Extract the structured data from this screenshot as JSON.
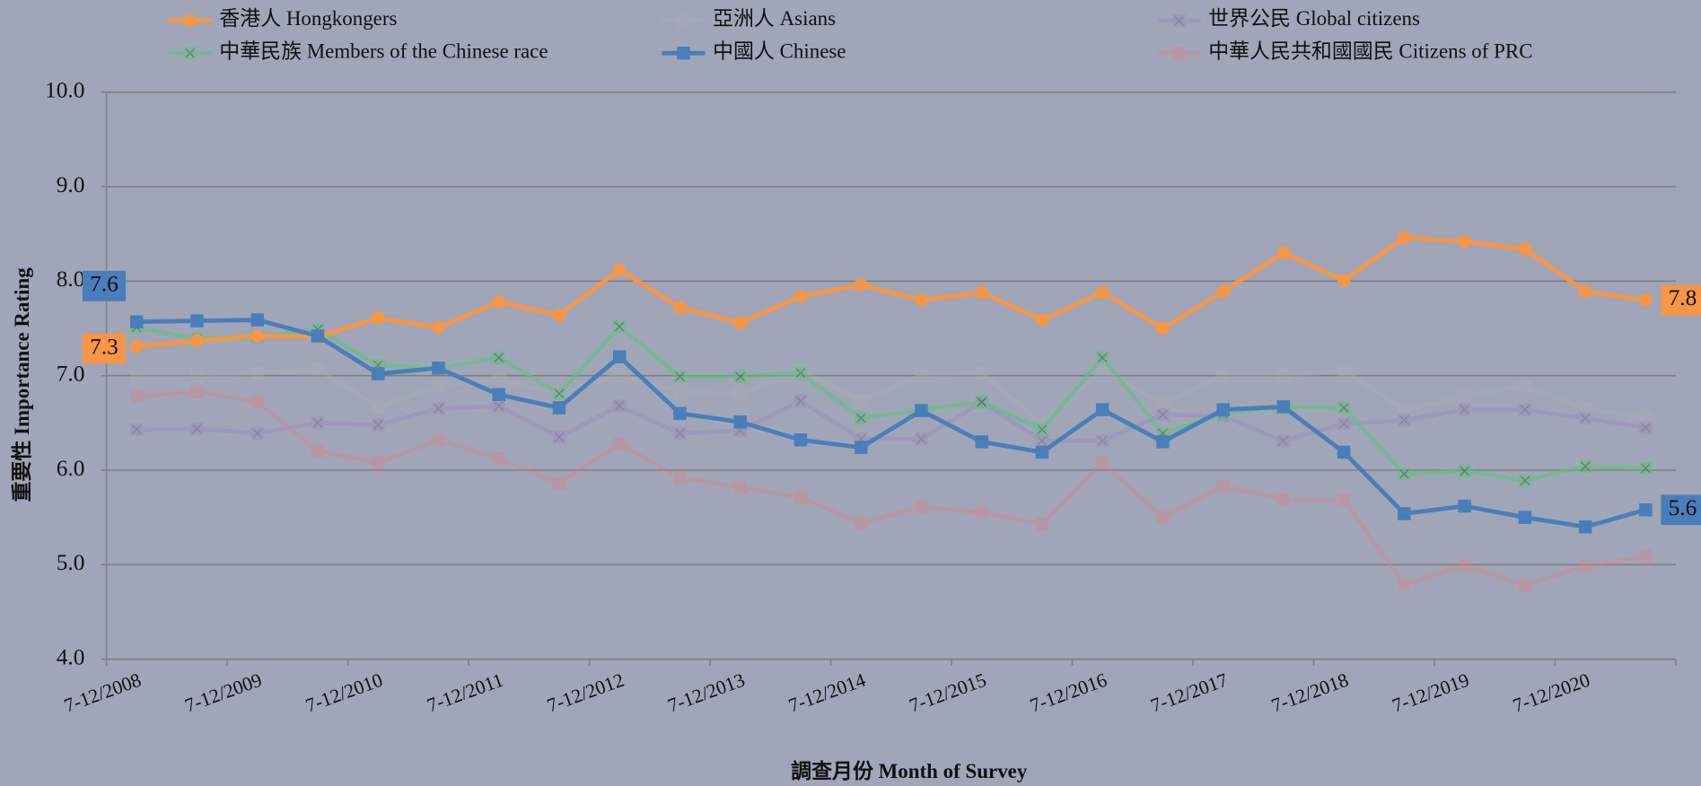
{
  "chart_data": {
    "type": "line",
    "x_label": "調查月份 Month of Survey",
    "y_label": "重要性 Importance Rating",
    "categories": [
      "7-12/2008",
      null,
      "7-12/2009",
      null,
      "7-12/2010",
      null,
      "7-12/2011",
      null,
      "7-12/2012",
      null,
      "7-12/2013",
      null,
      "7-12/2014",
      null,
      "7-12/2015",
      null,
      "7-12/2016",
      null,
      "7-12/2017",
      null,
      "7-12/2018",
      null,
      "7-12/2019",
      null,
      "7-12/2020",
      null
    ],
    "ylim": [
      4,
      10
    ],
    "yticks": [
      {
        "value": 4,
        "label": "4.0"
      },
      {
        "value": 5,
        "label": "5.0"
      },
      {
        "value": 6,
        "label": "6.0"
      },
      {
        "value": 7,
        "label": "7.0"
      },
      {
        "value": 8,
        "label": "8.0"
      },
      {
        "value": 9,
        "label": "9.0"
      },
      {
        "value": 10,
        "label": "10.0"
      }
    ],
    "grid": true,
    "legend": "top",
    "series": [
      {
        "name": "香港人 Hongkongers",
        "color": "#f79646",
        "marker": "circle",
        "opacity": 1,
        "values": [
          7.31,
          7.37,
          7.42,
          7.41,
          7.61,
          7.51,
          7.78,
          7.64,
          8.12,
          7.72,
          7.56,
          7.84,
          7.96,
          7.8,
          7.88,
          7.59,
          7.88,
          7.5,
          7.89,
          8.3,
          8.01,
          8.46,
          8.42,
          8.34,
          7.89,
          7.8
        ],
        "value_labels": [
          "7.3",
          null,
          null,
          null,
          null,
          null,
          null,
          null,
          null,
          null,
          null,
          null,
          null,
          null,
          null,
          null,
          null,
          null,
          null,
          null,
          null,
          null,
          null,
          null,
          null,
          "7.8"
        ]
      },
      {
        "name": "亞洲人 Asians",
        "color": "#b0b0b0",
        "marker": "square",
        "opacity": 0.35,
        "values": [
          6.98,
          6.98,
          7.03,
          7.07,
          6.67,
          6.89,
          6.96,
          6.82,
          7.01,
          6.82,
          6.81,
          7.05,
          6.74,
          7.0,
          7.03,
          6.49,
          7.05,
          6.71,
          7.0,
          7.0,
          7.05,
          6.64,
          6.78,
          6.89,
          6.65,
          6.56
        ]
      },
      {
        "name": "世界公民 Global citizens",
        "color": "#9b7fbf",
        "marker": "x-square",
        "opacity": 0.35,
        "values": [
          6.43,
          6.44,
          6.39,
          6.5,
          6.48,
          6.65,
          6.68,
          6.35,
          6.68,
          6.39,
          6.42,
          6.73,
          6.33,
          6.33,
          6.72,
          6.31,
          6.31,
          6.59,
          6.57,
          6.31,
          6.49,
          6.53,
          6.64,
          6.64,
          6.55,
          6.45
        ]
      },
      {
        "name": "中華民族 Members of the Chinese race",
        "color": "#5cc47a",
        "marker": "x-square",
        "opacity": 0.55,
        "values": [
          7.51,
          7.39,
          7.41,
          7.49,
          7.11,
          7.08,
          7.19,
          6.81,
          7.52,
          6.99,
          6.99,
          7.03,
          6.55,
          6.64,
          6.72,
          6.43,
          7.19,
          6.39,
          6.6,
          6.67,
          6.66,
          5.96,
          5.99,
          5.89,
          6.04,
          6.02
        ]
      },
      {
        "name": "中國人 Chinese",
        "color": "#4a7ebb",
        "marker": "square",
        "opacity": 1,
        "values": [
          7.57,
          7.58,
          7.59,
          7.42,
          7.02,
          7.08,
          6.8,
          6.66,
          7.2,
          6.6,
          6.51,
          6.32,
          6.24,
          6.63,
          6.3,
          6.19,
          6.64,
          6.3,
          6.64,
          6.67,
          6.19,
          5.54,
          5.62,
          5.5,
          5.4,
          5.58
        ],
        "value_labels": [
          "7.6",
          null,
          null,
          null,
          null,
          null,
          null,
          null,
          null,
          null,
          null,
          null,
          null,
          null,
          null,
          null,
          null,
          null,
          null,
          null,
          null,
          null,
          null,
          null,
          null,
          "5.6"
        ]
      },
      {
        "name": "中華人民共和國國民 Citizens of PRC",
        "color": "#e08080",
        "marker": "square",
        "opacity": 0.35,
        "values": [
          6.78,
          6.83,
          6.72,
          6.2,
          6.08,
          6.32,
          6.12,
          5.86,
          6.28,
          5.92,
          5.82,
          5.71,
          5.44,
          5.61,
          5.55,
          5.43,
          6.08,
          5.5,
          5.83,
          5.69,
          5.68,
          4.79,
          4.99,
          4.78,
          4.99,
          5.09
        ]
      }
    ]
  }
}
